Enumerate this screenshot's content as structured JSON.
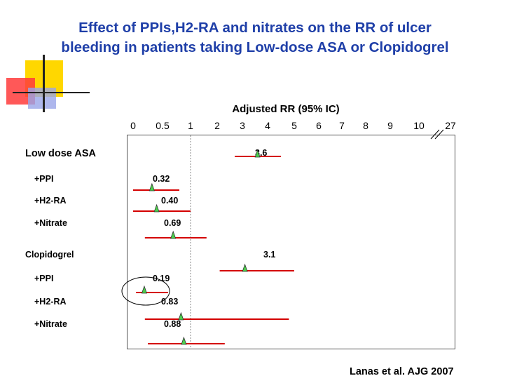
{
  "slide": {
    "title_line1": "Effect of PPIs,H2-RA and nitrates on the RR of ulcer",
    "title_line2": "bleeding in patients taking Low-dose ASA or Clopidogrel",
    "citation": "Lanas et al. AJG 2007"
  },
  "colors": {
    "title": "#1f3fa8",
    "ci_line": "#d40000",
    "marker": "#4ccf4c",
    "reference_line": "#888888"
  },
  "chart_data": {
    "type": "forest",
    "axis_title": "Adjusted RR (95% IC)",
    "tick_labels": [
      "0",
      "0.5",
      "1",
      "2",
      "3",
      "4",
      "5",
      "6",
      "7",
      "8",
      "9",
      "10",
      "27"
    ],
    "axis_scale": "non-uniform (0, 0.5, 1, 2 … 10, break, 27)",
    "reference_value": 1,
    "rows": [
      {
        "label": "Low dose ASA",
        "value_label": "3.6",
        "rr": 3.6,
        "ci": [
          2.7,
          4.5
        ]
      },
      {
        "label": "+PPI",
        "value_label": "0.32",
        "rr": 0.32,
        "ci": [
          0.0,
          0.8
        ]
      },
      {
        "label": "+H2-RA",
        "value_label": "0.40",
        "rr": 0.4,
        "ci": [
          0.0,
          1.0
        ]
      },
      {
        "label": "+Nitrate",
        "value_label": "0.69",
        "rr": 0.69,
        "ci": [
          0.2,
          1.6
        ]
      },
      {
        "label": "Clopidogrel",
        "value_label": "3.1",
        "rr": 3.1,
        "ci": [
          2.1,
          5.0
        ]
      },
      {
        "label": "+PPI",
        "value_label": "0.19",
        "rr": 0.19,
        "ci": [
          0.05,
          0.6
        ]
      },
      {
        "label": "+H2-RA",
        "value_label": "0.83",
        "rr": 0.83,
        "ci": [
          0.2,
          4.8
        ]
      },
      {
        "label": "+Nitrate",
        "value_label": "0.88",
        "rr": 0.88,
        "ci": [
          0.25,
          2.3
        ]
      }
    ]
  }
}
